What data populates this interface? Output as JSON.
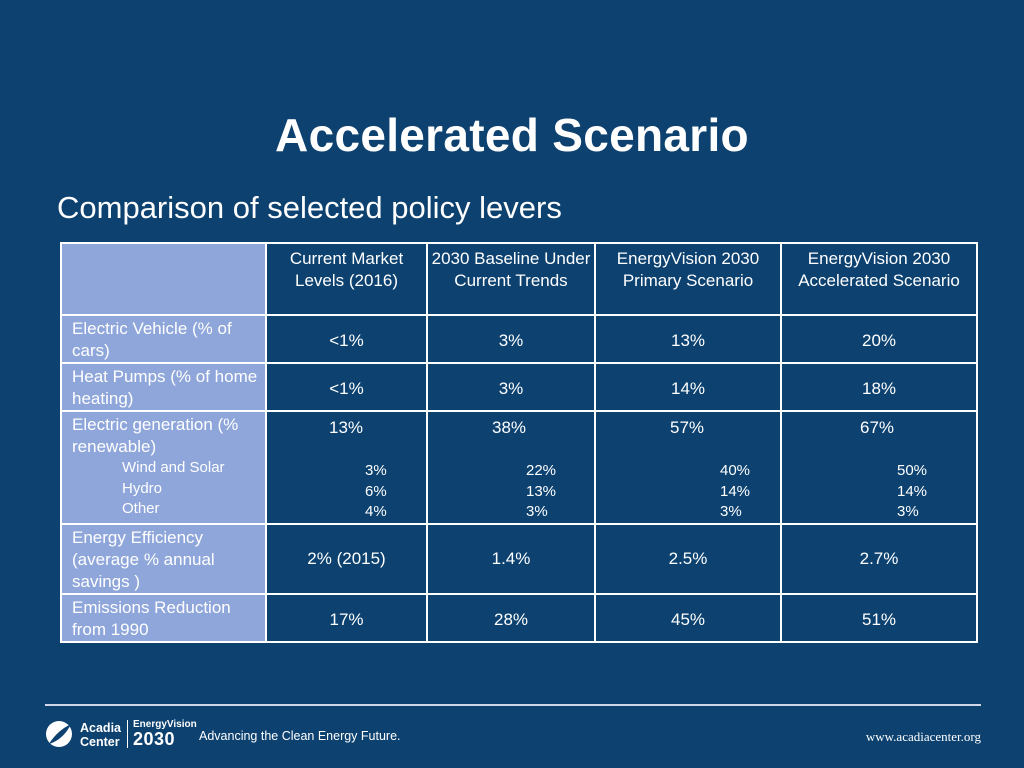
{
  "slide": {
    "title": "Accelerated Scenario",
    "subtitle": "Comparison of selected policy levers"
  },
  "table": {
    "headers": [
      "",
      "Current Market Levels (2016)",
      "2030 Baseline Under Current Trends",
      "EnergyVision 2030 Primary Scenario",
      "EnergyVision 2030 Accelerated Scenario"
    ],
    "rows": {
      "ev": {
        "label": "Electric Vehicle (% of cars)",
        "values": [
          "<1%",
          "3%",
          "13%",
          "20%"
        ]
      },
      "heat": {
        "label": "Heat Pumps (% of home heating)",
        "values": [
          "<1%",
          "3%",
          "14%",
          "18%"
        ]
      },
      "gen": {
        "label": "Electric generation (% renewable)",
        "values": [
          "13%",
          "38%",
          "57%",
          "67%"
        ],
        "sub": [
          {
            "label": "Wind and Solar",
            "values": [
              "3%",
              "22%",
              "40%",
              "50%"
            ]
          },
          {
            "label": "Hydro",
            "values": [
              "6%",
              "13%",
              "14%",
              "14%"
            ]
          },
          {
            "label": "Other",
            "values": [
              "4%",
              "3%",
              "3%",
              "3%"
            ]
          }
        ]
      },
      "eff": {
        "label": "Energy Efficiency (average % annual savings )",
        "values": [
          "2% (2015)",
          "1.4%",
          "2.5%",
          "2.7%"
        ]
      },
      "emis": {
        "label": "Emissions Reduction from 1990",
        "values": [
          "17%",
          "28%",
          "45%",
          "51%"
        ]
      }
    }
  },
  "footer": {
    "org_name_line1": "Acadia",
    "org_name_line2": "Center",
    "program_line1": "EnergyVision",
    "program_line2": "2030",
    "tagline": "Advancing the Clean Energy Future.",
    "url": "www.acadiacenter.org"
  },
  "colors": {
    "background": "#0c4170",
    "label_cells": "#8fa6db",
    "grid_lines": "#ffffff"
  }
}
